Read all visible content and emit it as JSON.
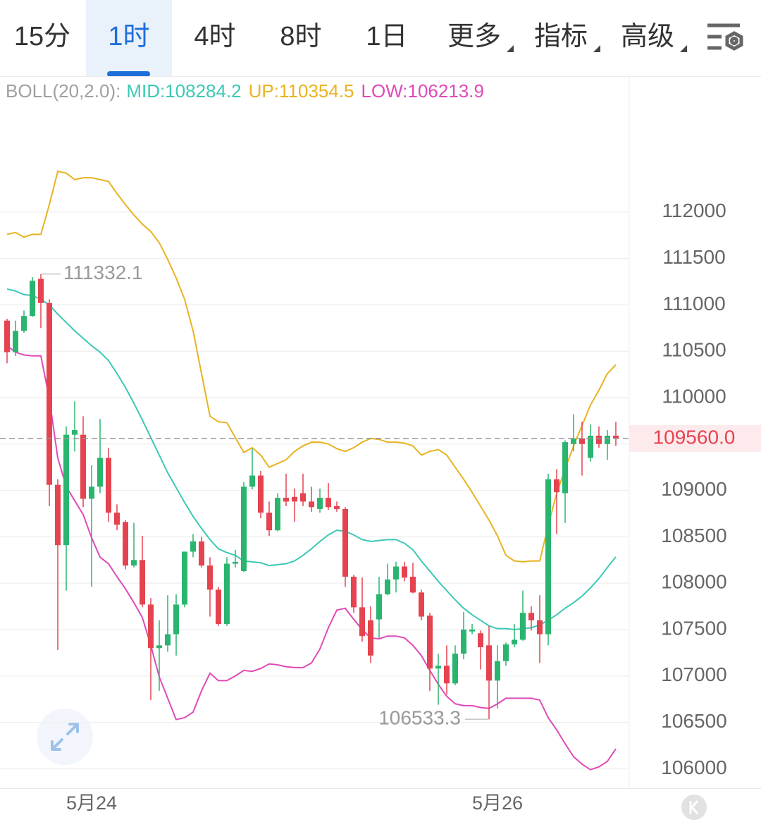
{
  "tabs": [
    "15分",
    "1时",
    "4时",
    "8时",
    "1日",
    "更多",
    "指标",
    "高级"
  ],
  "active_tab": 1,
  "chart_data": {
    "type": "candlestick",
    "categories": [
      null,
      null,
      null,
      null,
      null,
      null,
      null,
      null,
      null,
      null,
      "5月24",
      null,
      null,
      null,
      null,
      null,
      null,
      null,
      null,
      null,
      null,
      null,
      null,
      null,
      null,
      null,
      null,
      null,
      null,
      null,
      null,
      null,
      null,
      null,
      null,
      null,
      null,
      null,
      null,
      null,
      null,
      null,
      null,
      null,
      null,
      null,
      null,
      null,
      null,
      null,
      null,
      null,
      null,
      null,
      null,
      null,
      null,
      null,
      "5月26",
      null,
      null,
      null,
      null,
      null,
      null,
      null,
      null,
      null,
      null,
      null,
      null,
      null,
      null
    ],
    "open": [
      110830,
      110490,
      110720,
      110880,
      111280,
      111020,
      109060,
      108410,
      109600,
      109600,
      108910,
      109040,
      109350,
      108760,
      108660,
      108190,
      108250,
      107770,
      107300,
      107330,
      107450,
      107770,
      108340,
      108450,
      108190,
      107930,
      107560,
      108210,
      108130,
      109040,
      109160,
      108760,
      108570,
      108920,
      108930,
      108970,
      108880,
      108800,
      108920,
      108830,
      108800,
      108070,
      107740,
      107600,
      107610,
      107880,
      108040,
      108180,
      108070,
      107900,
      107650,
      107080,
      107110,
      106920,
      107240,
      107480,
      107460,
      107330,
      106950,
      107160,
      107340,
      107390,
      107680,
      107600,
      107450,
      109120,
      108970,
      109500,
      109560,
      109350,
      109590,
      109500,
      109590
    ],
    "high": [
      110850,
      110830,
      110940,
      111300,
      111332.1,
      111060,
      109120,
      109690,
      109960,
      109800,
      109270,
      109770,
      109460,
      108850,
      108680,
      108650,
      108510,
      107840,
      107600,
      107870,
      107880,
      108340,
      108530,
      108500,
      108280,
      107960,
      108280,
      108360,
      109090,
      109450,
      109210,
      108880,
      108970,
      109180,
      109020,
      109180,
      109040,
      109020,
      109080,
      108880,
      108820,
      108090,
      108060,
      107750,
      108070,
      108210,
      108230,
      108230,
      108220,
      107930,
      107680,
      107240,
      107330,
      107330,
      107690,
      107560,
      107490,
      107540,
      107330,
      107360,
      107560,
      107920,
      107750,
      107870,
      109180,
      109230,
      109540,
      109820,
      109740,
      109710,
      109690,
      109650,
      109740
    ],
    "low": [
      110370,
      110450,
      110700,
      110870,
      110750,
      108830,
      107280,
      107920,
      109420,
      108820,
      107960,
      108970,
      108660,
      108570,
      108150,
      108170,
      107740,
      106740,
      106840,
      107260,
      107220,
      107740,
      108280,
      108170,
      107640,
      107540,
      107540,
      108170,
      108120,
      109010,
      108700,
      108510,
      108560,
      108830,
      108660,
      108830,
      108770,
      108760,
      108790,
      108770,
      107960,
      107680,
      107370,
      107140,
      107410,
      107870,
      107900,
      108020,
      107890,
      107600,
      106840,
      106690,
      106800,
      106900,
      107180,
      107450,
      107070,
      106533.3,
      106650,
      107110,
      107310,
      107380,
      107490,
      107140,
      107330,
      108530,
      108650,
      109420,
      109160,
      109310,
      109460,
      109330,
      109480
    ],
    "close": [
      110490,
      110720,
      110880,
      111260,
      111020,
      109060,
      108410,
      109600,
      109650,
      108910,
      109040,
      109350,
      108760,
      108630,
      108190,
      108250,
      107770,
      107300,
      107330,
      107450,
      107770,
      108340,
      108450,
      108190,
      107930,
      107560,
      108210,
      108230,
      109040,
      109160,
      108760,
      108570,
      108920,
      108880,
      108880,
      108880,
      108820,
      108920,
      108820,
      108800,
      108070,
      107740,
      107430,
      107220,
      107880,
      108040,
      108180,
      108060,
      107900,
      107640,
      107080,
      107110,
      106920,
      107240,
      107500,
      107500,
      107310,
      106950,
      107160,
      107340,
      107390,
      107680,
      107600,
      107450,
      109120,
      108980,
      109520,
      109560,
      109500,
      109590,
      109500,
      109590,
      109560
    ],
    "up_color": "#2ab56f",
    "down_color": "#e5434f",
    "indicator": {
      "label": "BOLL(20,2.0):",
      "label_color": "#a0a0a0",
      "series": [
        {
          "name": "MID:",
          "color": "#3cc9b5",
          "values": [
            111170,
            111150,
            111110,
            111100,
            111060,
            111000,
            110900,
            110810,
            110720,
            110640,
            110560,
            110490,
            110400,
            110260,
            110110,
            109940,
            109760,
            109570,
            109380,
            109190,
            109030,
            108870,
            108720,
            108590,
            108470,
            108370,
            108330,
            108300,
            108240,
            108230,
            108220,
            108190,
            108200,
            108210,
            108240,
            108300,
            108370,
            108450,
            108520,
            108570,
            108560,
            108520,
            108470,
            108450,
            108460,
            108470,
            108470,
            108430,
            108360,
            108240,
            108130,
            108020,
            107920,
            107820,
            107730,
            107660,
            107600,
            107540,
            107510,
            107510,
            107500,
            107510,
            107520,
            107550,
            107600,
            107660,
            107730,
            107790,
            107860,
            107950,
            108050,
            108170,
            108284.2
          ]
        },
        {
          "name": "UP:",
          "color": "#e8b320",
          "values": [
            111760,
            111780,
            111730,
            111760,
            111760,
            112080,
            112440,
            112420,
            112350,
            112370,
            112370,
            112350,
            112330,
            112200,
            112080,
            111970,
            111870,
            111790,
            111670,
            111490,
            111290,
            111060,
            110720,
            110260,
            109800,
            109740,
            109730,
            109570,
            109410,
            109460,
            109380,
            109250,
            109290,
            109330,
            109420,
            109480,
            109520,
            109520,
            109500,
            109450,
            109420,
            109460,
            109520,
            109560,
            109550,
            109520,
            109520,
            109510,
            109480,
            109380,
            109420,
            109440,
            109380,
            109250,
            109120,
            108980,
            108830,
            108680,
            108510,
            108300,
            108240,
            108230,
            108240,
            108240,
            108620,
            108970,
            109230,
            109480,
            109700,
            109920,
            110080,
            110260,
            110354.5
          ]
        },
        {
          "name": "LOW:",
          "color": "#e04ab8",
          "values": [
            110560,
            110490,
            110460,
            110450,
            110450,
            109990,
            109350,
            109040,
            108890,
            108740,
            108490,
            108280,
            108210,
            108070,
            107940,
            107790,
            107630,
            107330,
            106990,
            106760,
            106530,
            106550,
            106610,
            106840,
            107030,
            106950,
            106950,
            107000,
            107060,
            107050,
            107080,
            107130,
            107120,
            107100,
            107090,
            107090,
            107140,
            107290,
            107520,
            107710,
            107730,
            107610,
            107500,
            107410,
            107400,
            107430,
            107430,
            107410,
            107330,
            107220,
            107060,
            106910,
            106780,
            106700,
            106680,
            106680,
            106660,
            106650,
            106700,
            106760,
            106760,
            106760,
            106760,
            106740,
            106550,
            106420,
            106270,
            106130,
            106050,
            105990,
            106020,
            106080,
            106213.9
          ]
        }
      ]
    },
    "ylim": [
      105790,
      113450
    ],
    "yticks": [
      106000,
      106500,
      107000,
      107500,
      108000,
      108500,
      109000,
      109500,
      110000,
      110500,
      111000,
      111500,
      112000
    ],
    "grid": true,
    "price_line": {
      "value": 109560,
      "label": "109560.0",
      "color": "#e5434f"
    }
  }
}
